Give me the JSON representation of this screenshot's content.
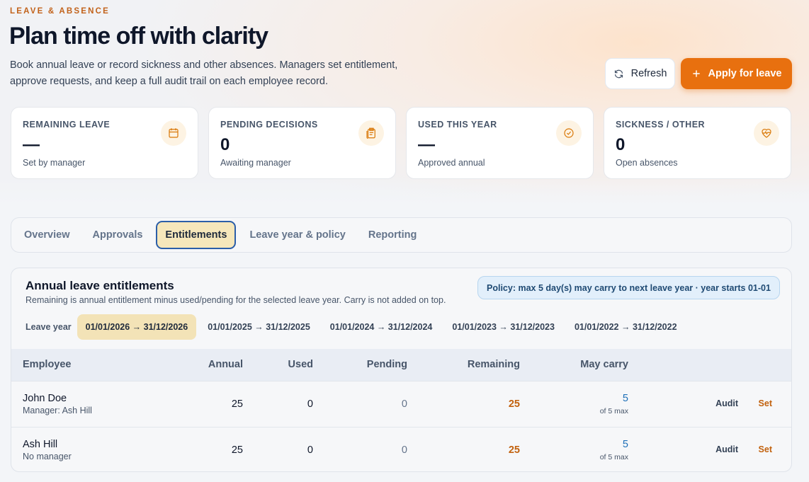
{
  "header": {
    "eyebrow": "LEAVE & ABSENCE",
    "title": "Plan time off with clarity",
    "description": "Book annual leave or record sickness and other absences. Managers set entitlement, approve requests, and keep a full audit trail on each employee record."
  },
  "actions": {
    "refresh": "Refresh",
    "apply": "Apply for leave"
  },
  "stats": [
    {
      "label": "REMAINING LEAVE",
      "value": "—",
      "note": "Set by manager"
    },
    {
      "label": "PENDING DECISIONS",
      "value": "0",
      "note": "Awaiting manager"
    },
    {
      "label": "USED THIS YEAR",
      "value": "—",
      "note": "Approved annual"
    },
    {
      "label": "SICKNESS / OTHER",
      "value": "0",
      "note": "Open absences"
    }
  ],
  "tabs": {
    "items": [
      "Overview",
      "Approvals",
      "Entitlements",
      "Leave year & policy",
      "Reporting"
    ],
    "active": 2
  },
  "panel": {
    "title": "Annual leave entitlements",
    "subtitle": "Remaining is annual entitlement minus used/pending for the selected leave year. Carry is not added on top.",
    "policy": "Policy: max 5 day(s) may carry to next leave year · year starts 01-01",
    "year_label": "Leave year",
    "years": [
      "01/01/2026 → 31/12/2026",
      "01/01/2025 → 31/12/2025",
      "01/01/2024 → 31/12/2024",
      "01/01/2023 → 31/12/2023",
      "01/01/2022 → 31/12/2022"
    ],
    "active_year": 0
  },
  "table": {
    "columns": [
      "Employee",
      "Annual",
      "Used",
      "Pending",
      "Remaining",
      "May carry"
    ],
    "rows": [
      {
        "name": "John Doe",
        "sub": "Manager: Ash Hill",
        "annual": 25,
        "used": 0,
        "pending": 0,
        "remaining": 25,
        "carry": 5,
        "carry_note": "of 5 max",
        "actions": [
          "Audit",
          "Set"
        ]
      },
      {
        "name": "Ash Hill",
        "sub": "No manager",
        "annual": 25,
        "used": 0,
        "pending": 0,
        "remaining": 25,
        "carry": 5,
        "carry_note": "of 5 max",
        "actions": [
          "Audit",
          "Set"
        ]
      }
    ]
  }
}
